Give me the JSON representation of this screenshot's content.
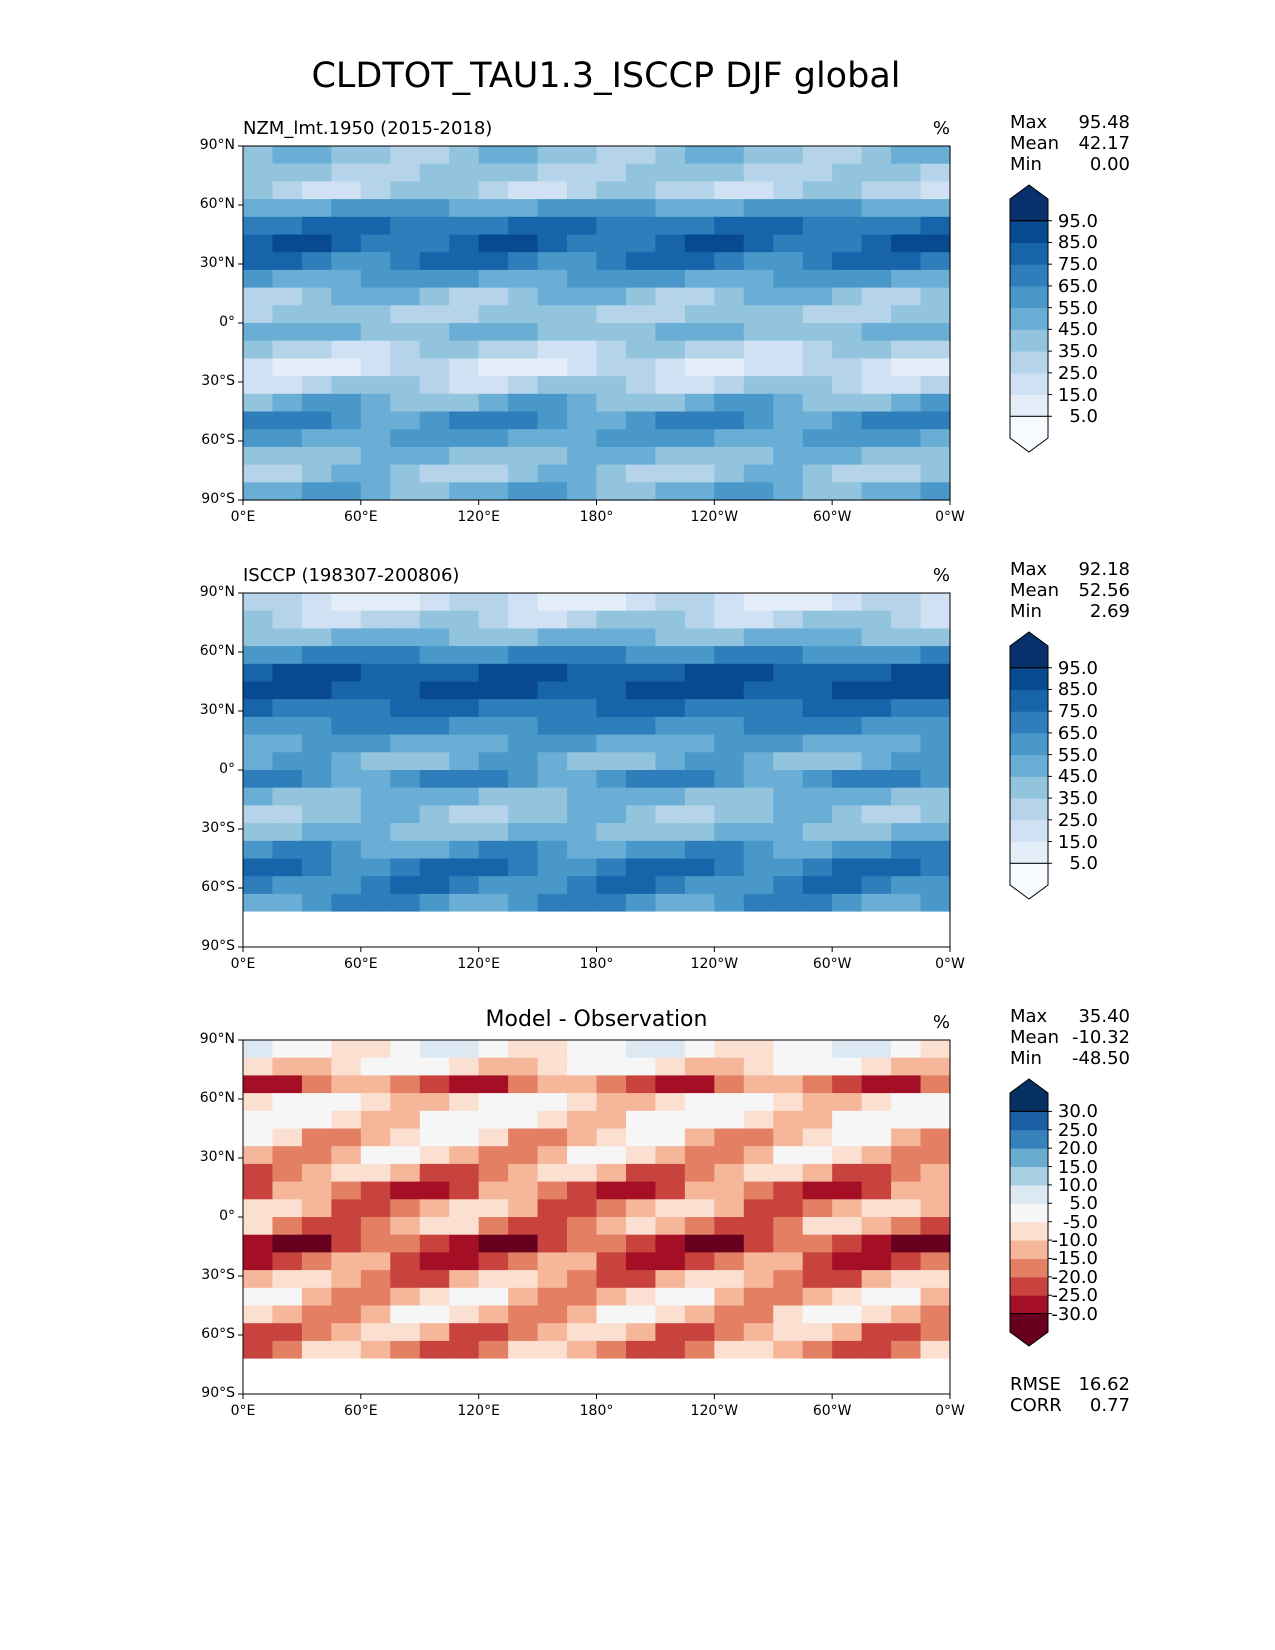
{
  "chart_data": {
    "type": "heatmap",
    "title": "CLDTOT_TAU1.3_ISCCP DJF global",
    "panels": [
      {
        "title_left": "NZM_lmt.1950 (2015-2018)",
        "title_center": "",
        "units": "%",
        "stats": {
          "max_label": "Max",
          "max": "95.48",
          "mean_label": "Mean",
          "mean": "42.17",
          "min_label": "Min",
          "min": "0.00"
        },
        "colorbar": {
          "levels": [
            "95.0",
            "85.0",
            "75.0",
            "65.0",
            "55.0",
            "45.0",
            "35.0",
            "25.0",
            "15.0",
            "5.0"
          ],
          "colors": [
            "#f7fbff",
            "#e3eef9",
            "#cfe1f2",
            "#b5d4e9",
            "#93c4de",
            "#6aaed6",
            "#4a98c9",
            "#2e7ebc",
            "#1764ab",
            "#084a91",
            "#08306b"
          ]
        },
        "zonal_profile": [
          40,
          35,
          30,
          55,
          75,
          80,
          70,
          55,
          40,
          35,
          45,
          30,
          20,
          30,
          50,
          60,
          55,
          45,
          40,
          50
        ]
      },
      {
        "title_left": "ISCCP (198307-200806)",
        "title_center": "",
        "units": "%",
        "stats": {
          "max_label": "Max",
          "max": "92.18",
          "mean_label": "Mean",
          "mean": "52.56",
          "min_label": "Min",
          "min": "2.69"
        },
        "colorbar": {
          "levels": [
            "95.0",
            "85.0",
            "75.0",
            "65.0",
            "55.0",
            "45.0",
            "35.0",
            "25.0",
            "15.0",
            "5.0"
          ],
          "colors": [
            "#f7fbff",
            "#e3eef9",
            "#cfe1f2",
            "#b5d4e9",
            "#93c4de",
            "#6aaed6",
            "#4a98c9",
            "#2e7ebc",
            "#1764ab",
            "#084a91",
            "#08306b"
          ]
        },
        "zonal_profile": [
          20,
          30,
          45,
          65,
          85,
          85,
          75,
          65,
          55,
          50,
          60,
          45,
          40,
          45,
          60,
          70,
          70,
          60,
          null,
          null
        ]
      },
      {
        "title_left": "",
        "title_center": "Model - Observation",
        "units": "%",
        "stats": {
          "max_label": "Max",
          "max": "35.40",
          "mean_label": "Mean",
          "mean": "-10.32",
          "min_label": "Min",
          "min": "-48.50"
        },
        "colorbar": {
          "levels": [
            "30.0",
            "25.0",
            "20.0",
            "15.0",
            "10.0",
            "5.0",
            "-5.0",
            "-10.0",
            "-15.0",
            "-20.0",
            "-25.0",
            "-30.0"
          ],
          "colors": [
            "#67001f",
            "#a50f26",
            "#c8423e",
            "#e38064",
            "#f5b69a",
            "#fbdfd1",
            "#f6f6f6",
            "#dce9f2",
            "#a7cfe4",
            "#6aabd0",
            "#3683bb",
            "#1d5fa5",
            "#053061"
          ]
        },
        "zonal_profile": [
          0,
          -5,
          -20,
          -5,
          -5,
          -10,
          -10,
          -15,
          -20,
          -15,
          -15,
          -25,
          -20,
          -15,
          -10,
          -10,
          -15,
          -15,
          null,
          null
        ]
      }
    ],
    "rmse_label": "RMSE",
    "rmse": "16.62",
    "corr_label": "CORR",
    "corr": "0.77",
    "xticks": [
      "0°E",
      "60°E",
      "120°E",
      "180°",
      "120°W",
      "60°W",
      "0°W"
    ],
    "yticks": [
      "90°N",
      "60°N",
      "30°N",
      "0°",
      "30°S",
      "60°S",
      "90°S"
    ],
    "xlim": [
      0,
      360
    ],
    "ylim": [
      -90,
      90
    ]
  }
}
